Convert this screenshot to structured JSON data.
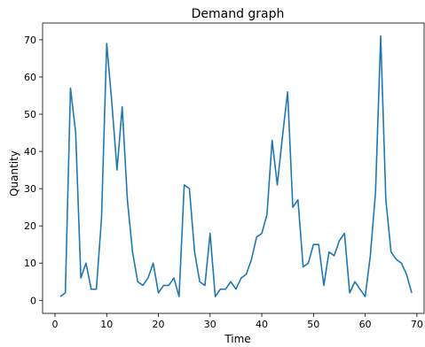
{
  "chart_data": {
    "type": "line",
    "title": "Demand graph",
    "xlabel": "Time",
    "ylabel": "Quantity",
    "xlim": [
      -2.4,
      71.4
    ],
    "ylim": [
      -3.5,
      74.5
    ],
    "xticks": [
      0,
      10,
      20,
      30,
      40,
      50,
      60,
      70
    ],
    "yticks": [
      0,
      10,
      20,
      30,
      40,
      50,
      60,
      70
    ],
    "grid": false,
    "series": [
      {
        "color": "#1f77b4",
        "x": [
          1,
          2,
          3,
          4,
          5,
          6,
          7,
          8,
          9,
          10,
          11,
          12,
          13,
          14,
          15,
          16,
          17,
          18,
          19,
          20,
          21,
          22,
          23,
          24,
          25,
          26,
          27,
          28,
          29,
          30,
          31,
          32,
          33,
          34,
          35,
          36,
          37,
          38,
          39,
          40,
          41,
          42,
          43,
          44,
          45,
          46,
          47,
          48,
          49,
          50,
          51,
          52,
          53,
          54,
          55,
          56,
          57,
          58,
          59,
          60,
          61,
          62,
          63,
          64,
          65,
          66,
          67,
          68,
          69
        ],
        "y": [
          1,
          2,
          57,
          45,
          6,
          10,
          3,
          3,
          22,
          69,
          53,
          35,
          52,
          27,
          13,
          5,
          4,
          6,
          10,
          2,
          4,
          4,
          6,
          1,
          31,
          30,
          13,
          5,
          4,
          18,
          1,
          3,
          3,
          5,
          3,
          6,
          7,
          11,
          17,
          18,
          23,
          43,
          31,
          44,
          56,
          25,
          27,
          9,
          10,
          15,
          15,
          4,
          13,
          12,
          16,
          18,
          2,
          5,
          3,
          1,
          12,
          29,
          71,
          27,
          13,
          11,
          10,
          7,
          2
        ]
      }
    ]
  }
}
